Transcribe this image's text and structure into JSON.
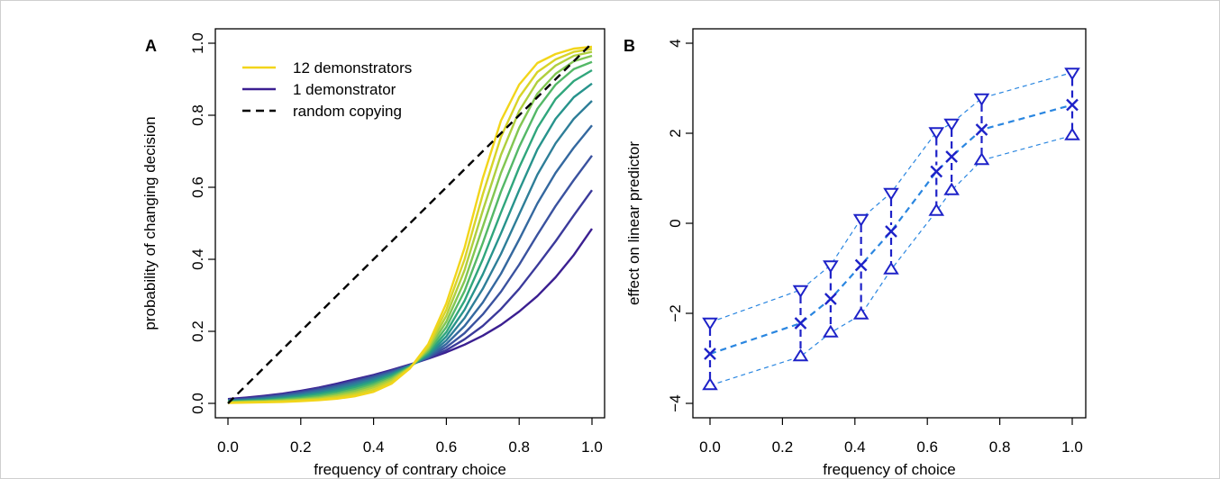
{
  "chart_data": [
    {
      "type": "line",
      "panel_label": "A",
      "xlabel": "frequency of contrary choice",
      "ylabel": "probability of changing decision",
      "xlim": [
        0,
        1
      ],
      "ylim": [
        0,
        1
      ],
      "xticks": [
        0.0,
        0.2,
        0.4,
        0.6,
        0.8,
        1.0
      ],
      "yticks": [
        0.0,
        0.2,
        0.4,
        0.6,
        0.8,
        1.0
      ],
      "xtick_labels": [
        "0.0",
        "0.2",
        "0.4",
        "0.6",
        "0.8",
        "1.0"
      ],
      "ytick_labels": [
        "0.0",
        "0.2",
        "0.4",
        "0.6",
        "0.8",
        "1.0"
      ],
      "x": [
        0,
        0.05,
        0.1,
        0.15,
        0.2,
        0.25,
        0.3,
        0.35,
        0.4,
        0.45,
        0.5,
        0.55,
        0.6,
        0.65,
        0.7,
        0.75,
        0.8,
        0.85,
        0.9,
        0.95,
        1.0
      ],
      "legend": {
        "placement": "top-left",
        "entries": [
          {
            "label": "12 demonstrators",
            "color": "#f2d51a",
            "dash": "solid"
          },
          {
            "label": "1 demonstrator",
            "color": "#3b1f91",
            "dash": "solid"
          },
          {
            "label": "random copying",
            "color": "#000000",
            "dash": "dashed"
          }
        ]
      },
      "series": [
        {
          "color": "#3b1f91",
          "values": [
            0.012,
            0.016,
            0.021,
            0.027,
            0.035,
            0.044,
            0.055,
            0.067,
            0.079,
            0.093,
            0.108,
            0.124,
            0.142,
            0.163,
            0.188,
            0.218,
            0.255,
            0.298,
            0.35,
            0.412,
            0.485
          ]
        },
        {
          "color": "#3b3a9b",
          "values": [
            0.01,
            0.014,
            0.019,
            0.025,
            0.033,
            0.042,
            0.052,
            0.064,
            0.077,
            0.091,
            0.107,
            0.125,
            0.148,
            0.178,
            0.215,
            0.262,
            0.318,
            0.383,
            0.45,
            0.522,
            0.592
          ]
        },
        {
          "color": "#3a529f",
          "values": [
            0.009,
            0.012,
            0.017,
            0.023,
            0.03,
            0.039,
            0.049,
            0.061,
            0.074,
            0.089,
            0.106,
            0.127,
            0.156,
            0.195,
            0.247,
            0.31,
            0.385,
            0.468,
            0.548,
            0.62,
            0.688
          ]
        },
        {
          "color": "#34689f",
          "values": [
            0.008,
            0.011,
            0.015,
            0.02,
            0.027,
            0.036,
            0.046,
            0.058,
            0.071,
            0.086,
            0.105,
            0.129,
            0.165,
            0.215,
            0.28,
            0.36,
            0.455,
            0.555,
            0.64,
            0.71,
            0.772
          ]
        },
        {
          "color": "#2e7e98",
          "values": [
            0.007,
            0.009,
            0.013,
            0.018,
            0.024,
            0.032,
            0.042,
            0.054,
            0.067,
            0.083,
            0.104,
            0.132,
            0.175,
            0.237,
            0.318,
            0.415,
            0.525,
            0.635,
            0.722,
            0.79,
            0.84
          ]
        },
        {
          "color": "#27938c",
          "values": [
            0.006,
            0.008,
            0.011,
            0.015,
            0.021,
            0.028,
            0.038,
            0.049,
            0.063,
            0.08,
            0.103,
            0.135,
            0.186,
            0.26,
            0.358,
            0.472,
            0.592,
            0.705,
            0.79,
            0.85,
            0.888
          ]
        },
        {
          "color": "#30a67c",
          "values": [
            0.005,
            0.007,
            0.009,
            0.013,
            0.018,
            0.025,
            0.034,
            0.045,
            0.059,
            0.077,
            0.102,
            0.139,
            0.198,
            0.285,
            0.4,
            0.53,
            0.655,
            0.765,
            0.845,
            0.895,
            0.925
          ]
        },
        {
          "color": "#54b867",
          "values": [
            0.004,
            0.006,
            0.008,
            0.011,
            0.015,
            0.021,
            0.029,
            0.04,
            0.054,
            0.073,
            0.101,
            0.143,
            0.212,
            0.312,
            0.445,
            0.588,
            0.712,
            0.818,
            0.885,
            0.928,
            0.948
          ]
        },
        {
          "color": "#82c652",
          "values": [
            0.003,
            0.005,
            0.006,
            0.009,
            0.012,
            0.017,
            0.025,
            0.035,
            0.049,
            0.069,
            0.1,
            0.148,
            0.227,
            0.34,
            0.49,
            0.64,
            0.765,
            0.86,
            0.915,
            0.95,
            0.965
          ]
        },
        {
          "color": "#b0cf3d",
          "values": [
            0.002,
            0.004,
            0.005,
            0.007,
            0.01,
            0.014,
            0.021,
            0.03,
            0.044,
            0.065,
            0.099,
            0.153,
            0.243,
            0.37,
            0.535,
            0.69,
            0.812,
            0.893,
            0.938,
            0.965,
            0.976
          ]
        },
        {
          "color": "#d8d428",
          "values": [
            0.002,
            0.003,
            0.004,
            0.005,
            0.008,
            0.011,
            0.017,
            0.025,
            0.038,
            0.06,
            0.098,
            0.158,
            0.26,
            0.4,
            0.58,
            0.74,
            0.85,
            0.92,
            0.955,
            0.976,
            0.984
          ]
        },
        {
          "color": "#f2d51a",
          "values": [
            0.001,
            0.002,
            0.003,
            0.004,
            0.006,
            0.009,
            0.013,
            0.02,
            0.032,
            0.055,
            0.097,
            0.164,
            0.278,
            0.432,
            0.625,
            0.785,
            0.885,
            0.945,
            0.97,
            0.985,
            0.99
          ]
        }
      ],
      "reference_line": {
        "color": "#000000",
        "dash": "dashed",
        "x": [
          0,
          1
        ],
        "y": [
          0,
          1
        ]
      }
    },
    {
      "type": "scatter",
      "panel_label": "B",
      "xlabel": "frequency of choice",
      "ylabel": "effect on linear predictor",
      "xlim": [
        0,
        1
      ],
      "ylim": [
        -4,
        4
      ],
      "xticks": [
        0.0,
        0.2,
        0.4,
        0.6,
        0.8,
        1.0
      ],
      "yticks": [
        -4,
        -2,
        0,
        2,
        4
      ],
      "xtick_labels": [
        "0.0",
        "0.2",
        "0.4",
        "0.6",
        "0.8",
        "1.0"
      ],
      "ytick_labels": [
        "−4",
        "−2",
        "0",
        "2",
        "4"
      ],
      "color_points": "#1e22c8",
      "color_lines": "#2a86e0",
      "x": [
        0.0,
        0.25,
        0.333,
        0.417,
        0.5,
        0.625,
        0.667,
        0.75,
        1.0
      ],
      "estimate": [
        -2.9,
        -2.22,
        -1.68,
        -0.93,
        -0.18,
        1.15,
        1.48,
        2.08,
        2.63
      ],
      "upper": [
        -2.2,
        -1.48,
        -0.93,
        0.1,
        0.68,
        2.03,
        2.22,
        2.78,
        3.35
      ],
      "lower": [
        -3.6,
        -2.96,
        -2.43,
        -2.03,
        -1.03,
        0.27,
        0.73,
        1.4,
        1.95
      ]
    }
  ]
}
